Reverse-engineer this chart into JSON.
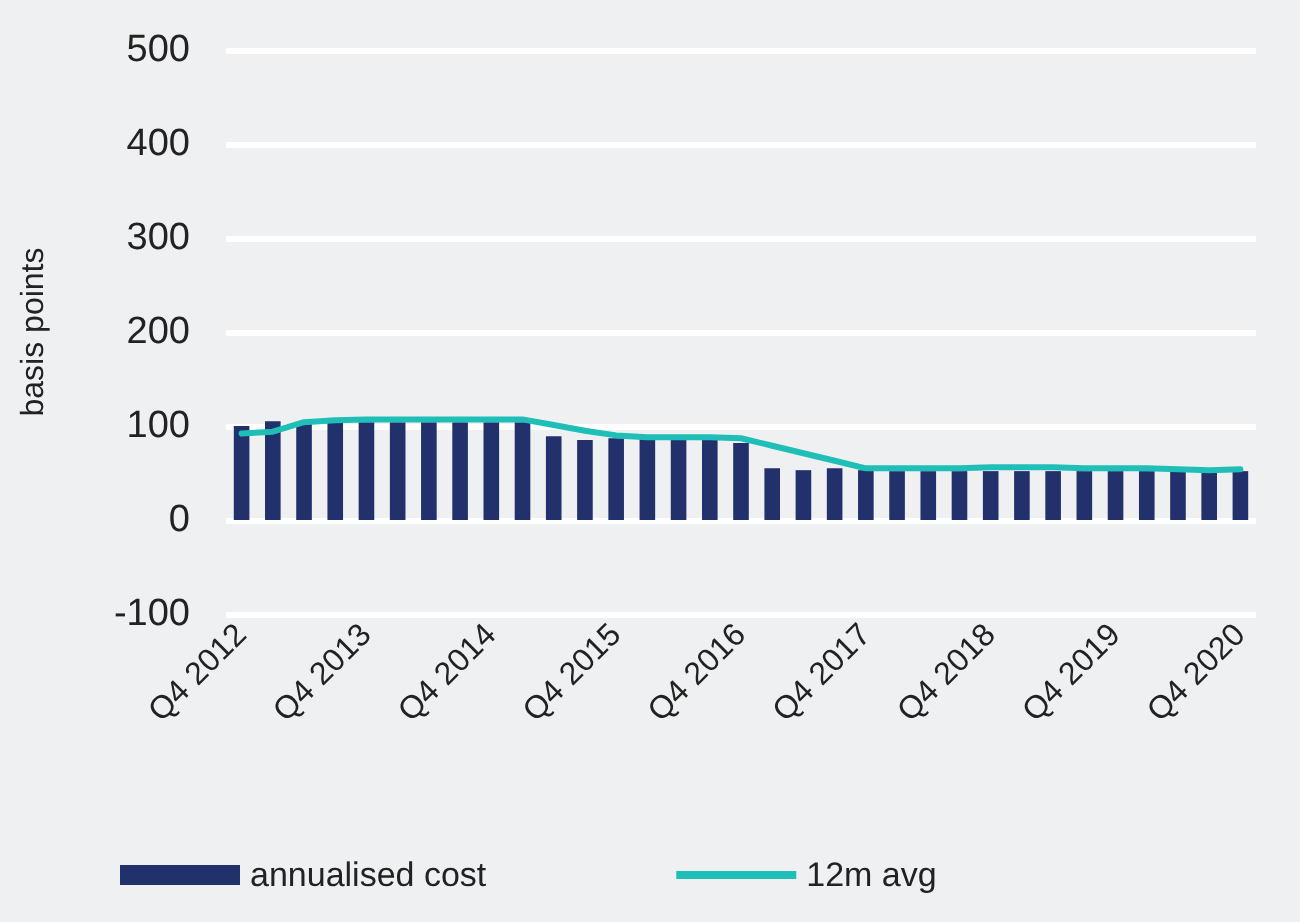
{
  "chart_data": {
    "type": "bar",
    "ylabel": "basis points",
    "categories": [
      "Q4 2012",
      null,
      null,
      null,
      "Q4 2013",
      null,
      null,
      null,
      "Q4 2014",
      null,
      null,
      null,
      "Q4 2015",
      null,
      null,
      null,
      "Q4 2016",
      null,
      null,
      null,
      "Q4 2017",
      null,
      null,
      null,
      "Q4 2018",
      null,
      null,
      null,
      "Q4 2019",
      null,
      null,
      null,
      "Q4 2020"
    ],
    "series": [
      {
        "name": "annualised cost",
        "color": "#22306b",
        "values": [
          100,
          105,
          104,
          104,
          104,
          104,
          104,
          104,
          104,
          104,
          89,
          85,
          87,
          86,
          86,
          86,
          82,
          55,
          53,
          55,
          53,
          52,
          52,
          52,
          52,
          52,
          52,
          52,
          52,
          52,
          52,
          52,
          52
        ]
      },
      {
        "name": "12m avg",
        "type": "line",
        "color": "#1fbfb8",
        "values": [
          92,
          94,
          104,
          106,
          107,
          107,
          107,
          107,
          107,
          107,
          101,
          95,
          90,
          88,
          88,
          88,
          87,
          79,
          71,
          63,
          55,
          55,
          55,
          55,
          56,
          56,
          56,
          55,
          55,
          55,
          54,
          53,
          54
        ]
      }
    ],
    "ylim": [
      -100,
      500
    ],
    "yticks": [
      -100,
      0,
      100,
      200,
      300,
      400,
      500
    ],
    "grid": "y",
    "legend": "bottom",
    "marker": "none"
  }
}
